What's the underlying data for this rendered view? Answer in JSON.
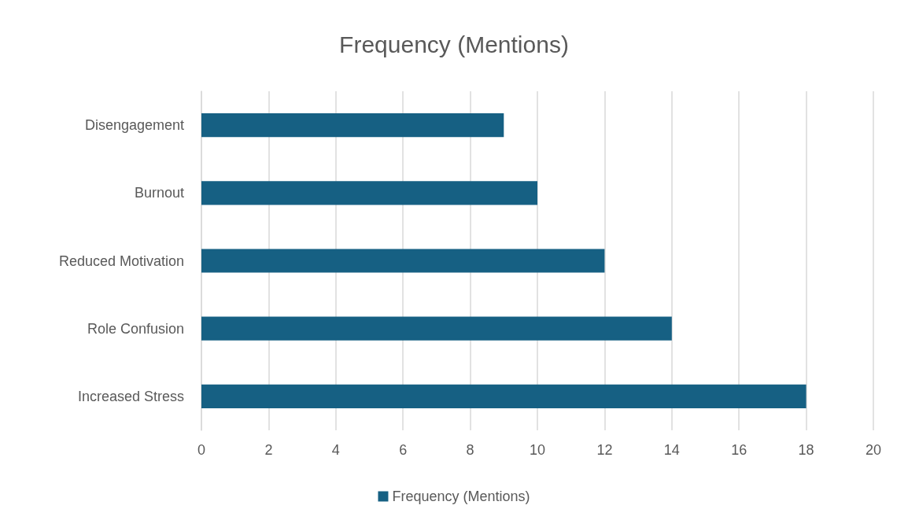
{
  "chart_data": {
    "type": "bar",
    "orientation": "horizontal",
    "title": "Frequency (Mentions)",
    "categories": [
      "Disengagement",
      "Burnout",
      "Reduced Motivation",
      "Role Confusion",
      "Increased Stress"
    ],
    "series": [
      {
        "name": "Frequency (Mentions)",
        "color": "#166083",
        "values": [
          9,
          10,
          12,
          14,
          18
        ]
      }
    ],
    "xlim": [
      0,
      20
    ],
    "xticks": [
      0,
      2,
      4,
      6,
      8,
      10,
      12,
      14,
      16,
      18,
      20
    ],
    "grid": "x",
    "legend": "bottom"
  }
}
